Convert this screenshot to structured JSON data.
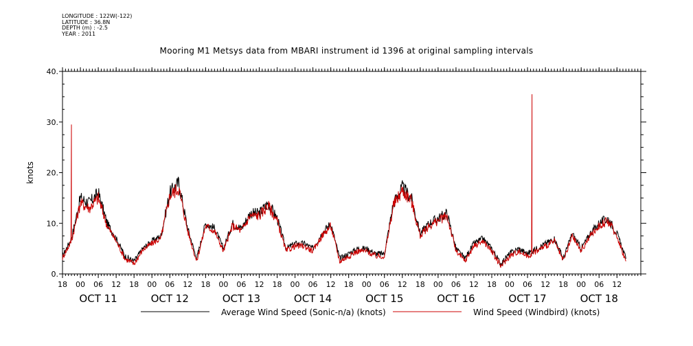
{
  "header": {
    "meta_lines": [
      "LONGITUDE : 122W(-122)",
      "LATITUDE : 36.8N",
      "DEPTH (m) : -2.5",
      "YEAR : 2011"
    ],
    "title": "Mooring M1 Metsys data from MBARI instrument id 1396 at original sampling intervals"
  },
  "chart_data": {
    "type": "line",
    "title": "Mooring M1 Metsys data from MBARI instrument id 1396 at original sampling intervals",
    "ylabel": "knots",
    "xlabel": "",
    "ylim": [
      0,
      40
    ],
    "yticks": [
      0,
      10,
      20,
      30,
      40
    ],
    "ytick_labels": [
      "0.",
      "10.",
      "20.",
      "30.",
      "40."
    ],
    "xlim_hours_note": "time axis from Oct 10 18:00 to Oct 18 20:00 (2011)",
    "x_hour_ticks": [
      "18",
      "00",
      "06",
      "12",
      "18",
      "00",
      "06",
      "12",
      "18",
      "00",
      "06",
      "12",
      "18",
      "00",
      "06",
      "12",
      "18",
      "00",
      "06",
      "12",
      "18",
      "00",
      "06",
      "12",
      "18",
      "00",
      "06",
      "12",
      "18",
      "00",
      "06",
      "12"
    ],
    "x_day_labels": [
      "OCT 11",
      "OCT 12",
      "OCT 13",
      "OCT 14",
      "OCT 15",
      "OCT 16",
      "OCT 17",
      "OCT 18"
    ],
    "grid": false,
    "legend_position": "bottom",
    "series": [
      {
        "name": "Average Wind Speed (Sonic-n/a) (knots)",
        "color": "#000000",
        "x": [
          "2011-10-10 18:00",
          "2011-10-10 21:00",
          "2011-10-11 00:00",
          "2011-10-11 03:00",
          "2011-10-11 06:00",
          "2011-10-11 09:00",
          "2011-10-11 12:00",
          "2011-10-11 15:00",
          "2011-10-11 18:00",
          "2011-10-11 21:00",
          "2011-10-12 00:00",
          "2011-10-12 03:00",
          "2011-10-12 06:00",
          "2011-10-12 09:00",
          "2011-10-12 12:00",
          "2011-10-12 15:00",
          "2011-10-12 18:00",
          "2011-10-12 21:00",
          "2011-10-13 00:00",
          "2011-10-13 03:00",
          "2011-10-13 06:00",
          "2011-10-13 09:00",
          "2011-10-13 12:00",
          "2011-10-13 15:00",
          "2011-10-13 18:00",
          "2011-10-13 21:00",
          "2011-10-14 00:00",
          "2011-10-14 03:00",
          "2011-10-14 06:00",
          "2011-10-14 09:00",
          "2011-10-14 12:00",
          "2011-10-14 15:00",
          "2011-10-14 18:00",
          "2011-10-14 21:00",
          "2011-10-15 00:00",
          "2011-10-15 03:00",
          "2011-10-15 06:00",
          "2011-10-15 09:00",
          "2011-10-15 12:00",
          "2011-10-15 15:00",
          "2011-10-15 18:00",
          "2011-10-15 21:00",
          "2011-10-16 00:00",
          "2011-10-16 03:00",
          "2011-10-16 06:00",
          "2011-10-16 09:00",
          "2011-10-16 12:00",
          "2011-10-16 15:00",
          "2011-10-16 18:00",
          "2011-10-16 21:00",
          "2011-10-17 00:00",
          "2011-10-17 03:00",
          "2011-10-17 06:00",
          "2011-10-17 09:00",
          "2011-10-17 12:00",
          "2011-10-17 15:00",
          "2011-10-17 18:00",
          "2011-10-17 21:00",
          "2011-10-18 00:00",
          "2011-10-18 03:00",
          "2011-10-18 06:00",
          "2011-10-18 09:00",
          "2011-10-18 12:00",
          "2011-10-18 15:00"
        ],
        "values": [
          3.5,
          7,
          15,
          14,
          16,
          10,
          7,
          3.5,
          2.5,
          5,
          6.5,
          7.5,
          16,
          18,
          9,
          3,
          10,
          9,
          5,
          10,
          9,
          12,
          12,
          14,
          11,
          5,
          6,
          6,
          5,
          8,
          10,
          3,
          4,
          5,
          5,
          4,
          4,
          14,
          17,
          15,
          8,
          10,
          11,
          12,
          5,
          3,
          6,
          7,
          5,
          2,
          4,
          5,
          4,
          5,
          6,
          7,
          3,
          8,
          5,
          8,
          10,
          11,
          8,
          3
        ]
      },
      {
        "name": "Wind Speed (Windbird) (knots)",
        "color": "#cc0000",
        "x": [
          "2011-10-10 18:00",
          "2011-10-10 21:00",
          "2011-10-11 00:00",
          "2011-10-11 03:00",
          "2011-10-11 06:00",
          "2011-10-11 09:00",
          "2011-10-11 12:00",
          "2011-10-11 15:00",
          "2011-10-11 18:00",
          "2011-10-11 21:00",
          "2011-10-12 00:00",
          "2011-10-12 03:00",
          "2011-10-12 06:00",
          "2011-10-12 09:00",
          "2011-10-12 12:00",
          "2011-10-12 15:00",
          "2011-10-12 18:00",
          "2011-10-12 21:00",
          "2011-10-13 00:00",
          "2011-10-13 03:00",
          "2011-10-13 06:00",
          "2011-10-13 09:00",
          "2011-10-13 12:00",
          "2011-10-13 15:00",
          "2011-10-13 18:00",
          "2011-10-13 21:00",
          "2011-10-14 00:00",
          "2011-10-14 03:00",
          "2011-10-14 06:00",
          "2011-10-14 09:00",
          "2011-10-14 12:00",
          "2011-10-14 15:00",
          "2011-10-14 18:00",
          "2011-10-14 21:00",
          "2011-10-15 00:00",
          "2011-10-15 03:00",
          "2011-10-15 06:00",
          "2011-10-15 09:00",
          "2011-10-15 12:00",
          "2011-10-15 15:00",
          "2011-10-15 18:00",
          "2011-10-15 21:00",
          "2011-10-16 00:00",
          "2011-10-16 03:00",
          "2011-10-16 06:00",
          "2011-10-16 09:00",
          "2011-10-16 12:00",
          "2011-10-16 15:00",
          "2011-10-16 18:00",
          "2011-10-16 21:00",
          "2011-10-17 00:00",
          "2011-10-17 03:00",
          "2011-10-17 06:00",
          "2011-10-17 09:00",
          "2011-10-17 12:00",
          "2011-10-17 15:00",
          "2011-10-17 18:00",
          "2011-10-17 21:00",
          "2011-10-18 00:00",
          "2011-10-18 03:00",
          "2011-10-18 06:00",
          "2011-10-18 09:00",
          "2011-10-18 12:00",
          "2011-10-18 15:00"
        ],
        "values": [
          3.2,
          6.5,
          14,
          13,
          15,
          9.5,
          6.5,
          3,
          2,
          4.8,
          6,
          7,
          15.5,
          17,
          8.5,
          2.5,
          9.5,
          8.5,
          4.5,
          9.5,
          8.5,
          11.5,
          11.5,
          13.5,
          10.5,
          4.5,
          5.5,
          5.5,
          4.5,
          7.5,
          9.5,
          2.5,
          3.5,
          4.5,
          4.5,
          3.5,
          3.5,
          13.5,
          16.5,
          14.5,
          7.5,
          9.5,
          10.5,
          11.5,
          4.5,
          2.5,
          5.5,
          6.5,
          4.5,
          1.5,
          3.5,
          4.5,
          3.5,
          4.5,
          5.5,
          6.5,
          2.5,
          7.5,
          4.5,
          7.5,
          9.5,
          10.5,
          7.5,
          2.5
        ],
        "spikes": [
          {
            "x": "2011-10-10 21:00",
            "value": 29.5
          },
          {
            "x": "2011-10-17 07:30",
            "value": 35.5
          }
        ]
      }
    ]
  }
}
